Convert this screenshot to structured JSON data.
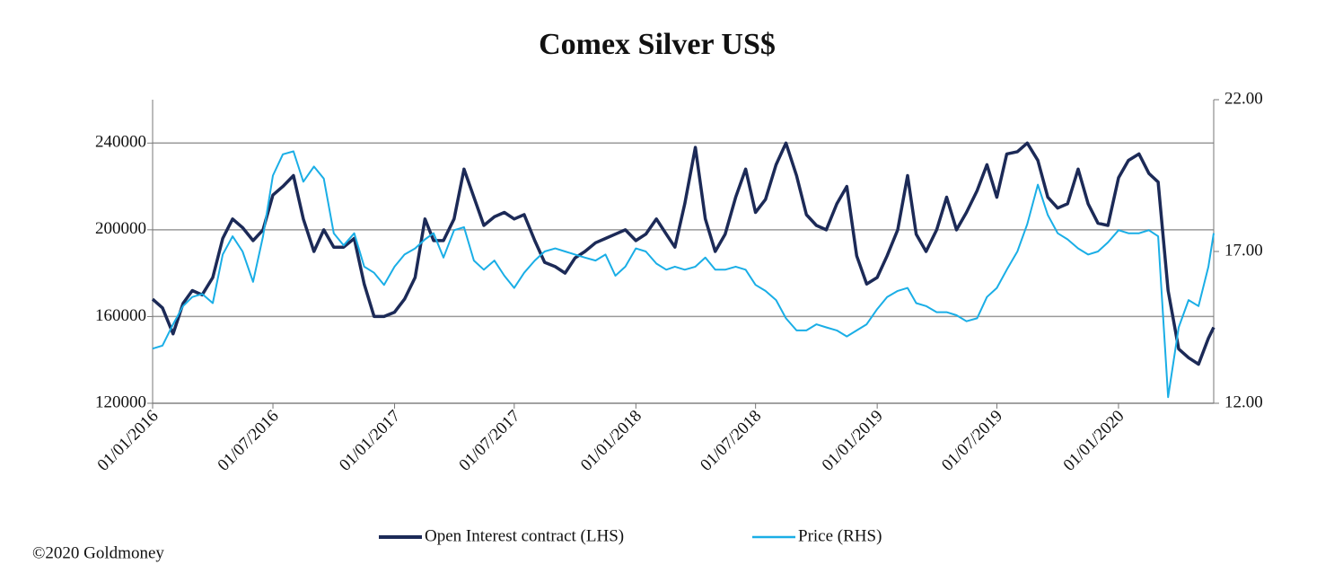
{
  "chart_data": {
    "type": "line",
    "title": "Comex Silver US$",
    "source": "©2020 Goldmoney",
    "legend": "bottom",
    "grid": true,
    "xlim": [
      "2016-01-01",
      "2020-05-24"
    ],
    "xticks": [
      {
        "value": "2016-01-01",
        "label": "01/01/2016"
      },
      {
        "value": "2016-07-01",
        "label": "01/07/2016"
      },
      {
        "value": "2017-01-01",
        "label": "01/01/2017"
      },
      {
        "value": "2017-07-01",
        "label": "01/07/2017"
      },
      {
        "value": "2018-01-01",
        "label": "01/01/2018"
      },
      {
        "value": "2018-07-01",
        "label": "01/07/2018"
      },
      {
        "value": "2019-01-01",
        "label": "01/01/2019"
      },
      {
        "value": "2019-07-01",
        "label": "01/07/2019"
      },
      {
        "value": "2020-01-01",
        "label": "01/01/2020"
      }
    ],
    "ylim": [
      120000,
      260000
    ],
    "yticks": [
      120000,
      160000,
      200000,
      240000
    ],
    "y2lim": [
      12,
      22
    ],
    "y2ticks": [
      {
        "value": 12,
        "label": "12.00"
      },
      {
        "value": 17,
        "label": "17.00"
      },
      {
        "value": 22,
        "label": "22.00"
      }
    ],
    "x": [
      "2016-01-01",
      "2016-01-16",
      "2016-02-01",
      "2016-02-16",
      "2016-03-01",
      "2016-03-16",
      "2016-04-01",
      "2016-04-16",
      "2016-05-01",
      "2016-05-16",
      "2016-06-01",
      "2016-06-16",
      "2016-07-01",
      "2016-07-16",
      "2016-08-01",
      "2016-08-16",
      "2016-09-01",
      "2016-09-16",
      "2016-10-01",
      "2016-10-16",
      "2016-11-01",
      "2016-11-16",
      "2016-12-01",
      "2016-12-16",
      "2017-01-01",
      "2017-01-16",
      "2017-02-01",
      "2017-02-16",
      "2017-03-01",
      "2017-03-16",
      "2017-04-01",
      "2017-04-16",
      "2017-05-01",
      "2017-05-16",
      "2017-06-01",
      "2017-06-16",
      "2017-07-01",
      "2017-07-16",
      "2017-08-01",
      "2017-08-16",
      "2017-09-01",
      "2017-09-16",
      "2017-10-01",
      "2017-10-16",
      "2017-11-01",
      "2017-11-16",
      "2017-12-01",
      "2017-12-16",
      "2018-01-01",
      "2018-01-16",
      "2018-02-01",
      "2018-02-16",
      "2018-03-01",
      "2018-03-16",
      "2018-04-01",
      "2018-04-16",
      "2018-05-01",
      "2018-05-16",
      "2018-06-01",
      "2018-06-16",
      "2018-07-01",
      "2018-07-16",
      "2018-08-01",
      "2018-08-16",
      "2018-09-01",
      "2018-09-16",
      "2018-10-01",
      "2018-10-16",
      "2018-11-01",
      "2018-11-16",
      "2018-12-01",
      "2018-12-16",
      "2019-01-01",
      "2019-01-16",
      "2019-02-01",
      "2019-02-16",
      "2019-03-01",
      "2019-03-16",
      "2019-04-01",
      "2019-04-16",
      "2019-05-01",
      "2019-05-16",
      "2019-06-01",
      "2019-06-16",
      "2019-07-01",
      "2019-07-16",
      "2019-08-01",
      "2019-08-16",
      "2019-09-01",
      "2019-09-16",
      "2019-10-01",
      "2019-10-16",
      "2019-11-01",
      "2019-11-16",
      "2019-12-01",
      "2019-12-16",
      "2020-01-01",
      "2020-01-16",
      "2020-02-01",
      "2020-02-16",
      "2020-03-01",
      "2020-03-16",
      "2020-04-01",
      "2020-04-16",
      "2020-05-01",
      "2020-05-16",
      "2020-05-24"
    ],
    "series": [
      {
        "name": "Open Interest contract (LHS)",
        "color": "#1c2a57",
        "axis": "y",
        "values": [
          168000,
          164000,
          152000,
          166000,
          172000,
          170000,
          178000,
          196000,
          205000,
          201000,
          195000,
          200000,
          216000,
          220000,
          225000,
          205000,
          190000,
          200000,
          192000,
          192000,
          196000,
          175000,
          160000,
          160000,
          162000,
          168000,
          178000,
          205000,
          195000,
          195000,
          205000,
          228000,
          215000,
          202000,
          206000,
          208000,
          205000,
          207000,
          195000,
          185000,
          183000,
          180000,
          187000,
          190000,
          194000,
          196000,
          198000,
          200000,
          195000,
          198000,
          205000,
          198000,
          192000,
          212000,
          238000,
          205000,
          190000,
          198000,
          215000,
          228000,
          208000,
          214000,
          230000,
          240000,
          225000,
          207000,
          202000,
          200000,
          212000,
          220000,
          188000,
          175000,
          178000,
          188000,
          200000,
          225000,
          198000,
          190000,
          200000,
          215000,
          200000,
          208000,
          218000,
          230000,
          215000,
          235000,
          236000,
          240000,
          232000,
          215000,
          210000,
          212000,
          228000,
          212000,
          203000,
          202000,
          224000,
          232000,
          235000,
          226000,
          222000,
          172000,
          145000,
          141000,
          138000,
          150000,
          155000
        ]
      },
      {
        "name": "Price (RHS)",
        "color": "#1aaee6",
        "axis": "y2",
        "values": [
          13.8,
          13.9,
          14.6,
          15.2,
          15.5,
          15.6,
          15.3,
          16.9,
          17.5,
          17.0,
          16.0,
          17.5,
          19.5,
          20.2,
          20.3,
          19.3,
          19.8,
          19.4,
          17.6,
          17.2,
          17.6,
          16.5,
          16.3,
          15.9,
          16.5,
          16.9,
          17.1,
          17.4,
          17.6,
          16.8,
          17.7,
          17.8,
          16.7,
          16.4,
          16.7,
          16.2,
          15.8,
          16.3,
          16.7,
          17.0,
          17.1,
          17.0,
          16.9,
          16.8,
          16.7,
          16.9,
          16.2,
          16.5,
          17.1,
          17.0,
          16.6,
          16.4,
          16.5,
          16.4,
          16.5,
          16.8,
          16.4,
          16.4,
          16.5,
          16.4,
          15.9,
          15.7,
          15.4,
          14.8,
          14.4,
          14.4,
          14.6,
          14.5,
          14.4,
          14.2,
          14.4,
          14.6,
          15.1,
          15.5,
          15.7,
          15.8,
          15.3,
          15.2,
          15.0,
          15.0,
          14.9,
          14.7,
          14.8,
          15.5,
          15.8,
          16.4,
          17.0,
          17.9,
          19.2,
          18.2,
          17.6,
          17.4,
          17.1,
          16.9,
          17.0,
          17.3,
          17.7,
          17.6,
          17.6,
          17.7,
          17.5,
          12.2,
          14.5,
          15.4,
          15.2,
          16.5,
          17.6
        ]
      }
    ]
  }
}
